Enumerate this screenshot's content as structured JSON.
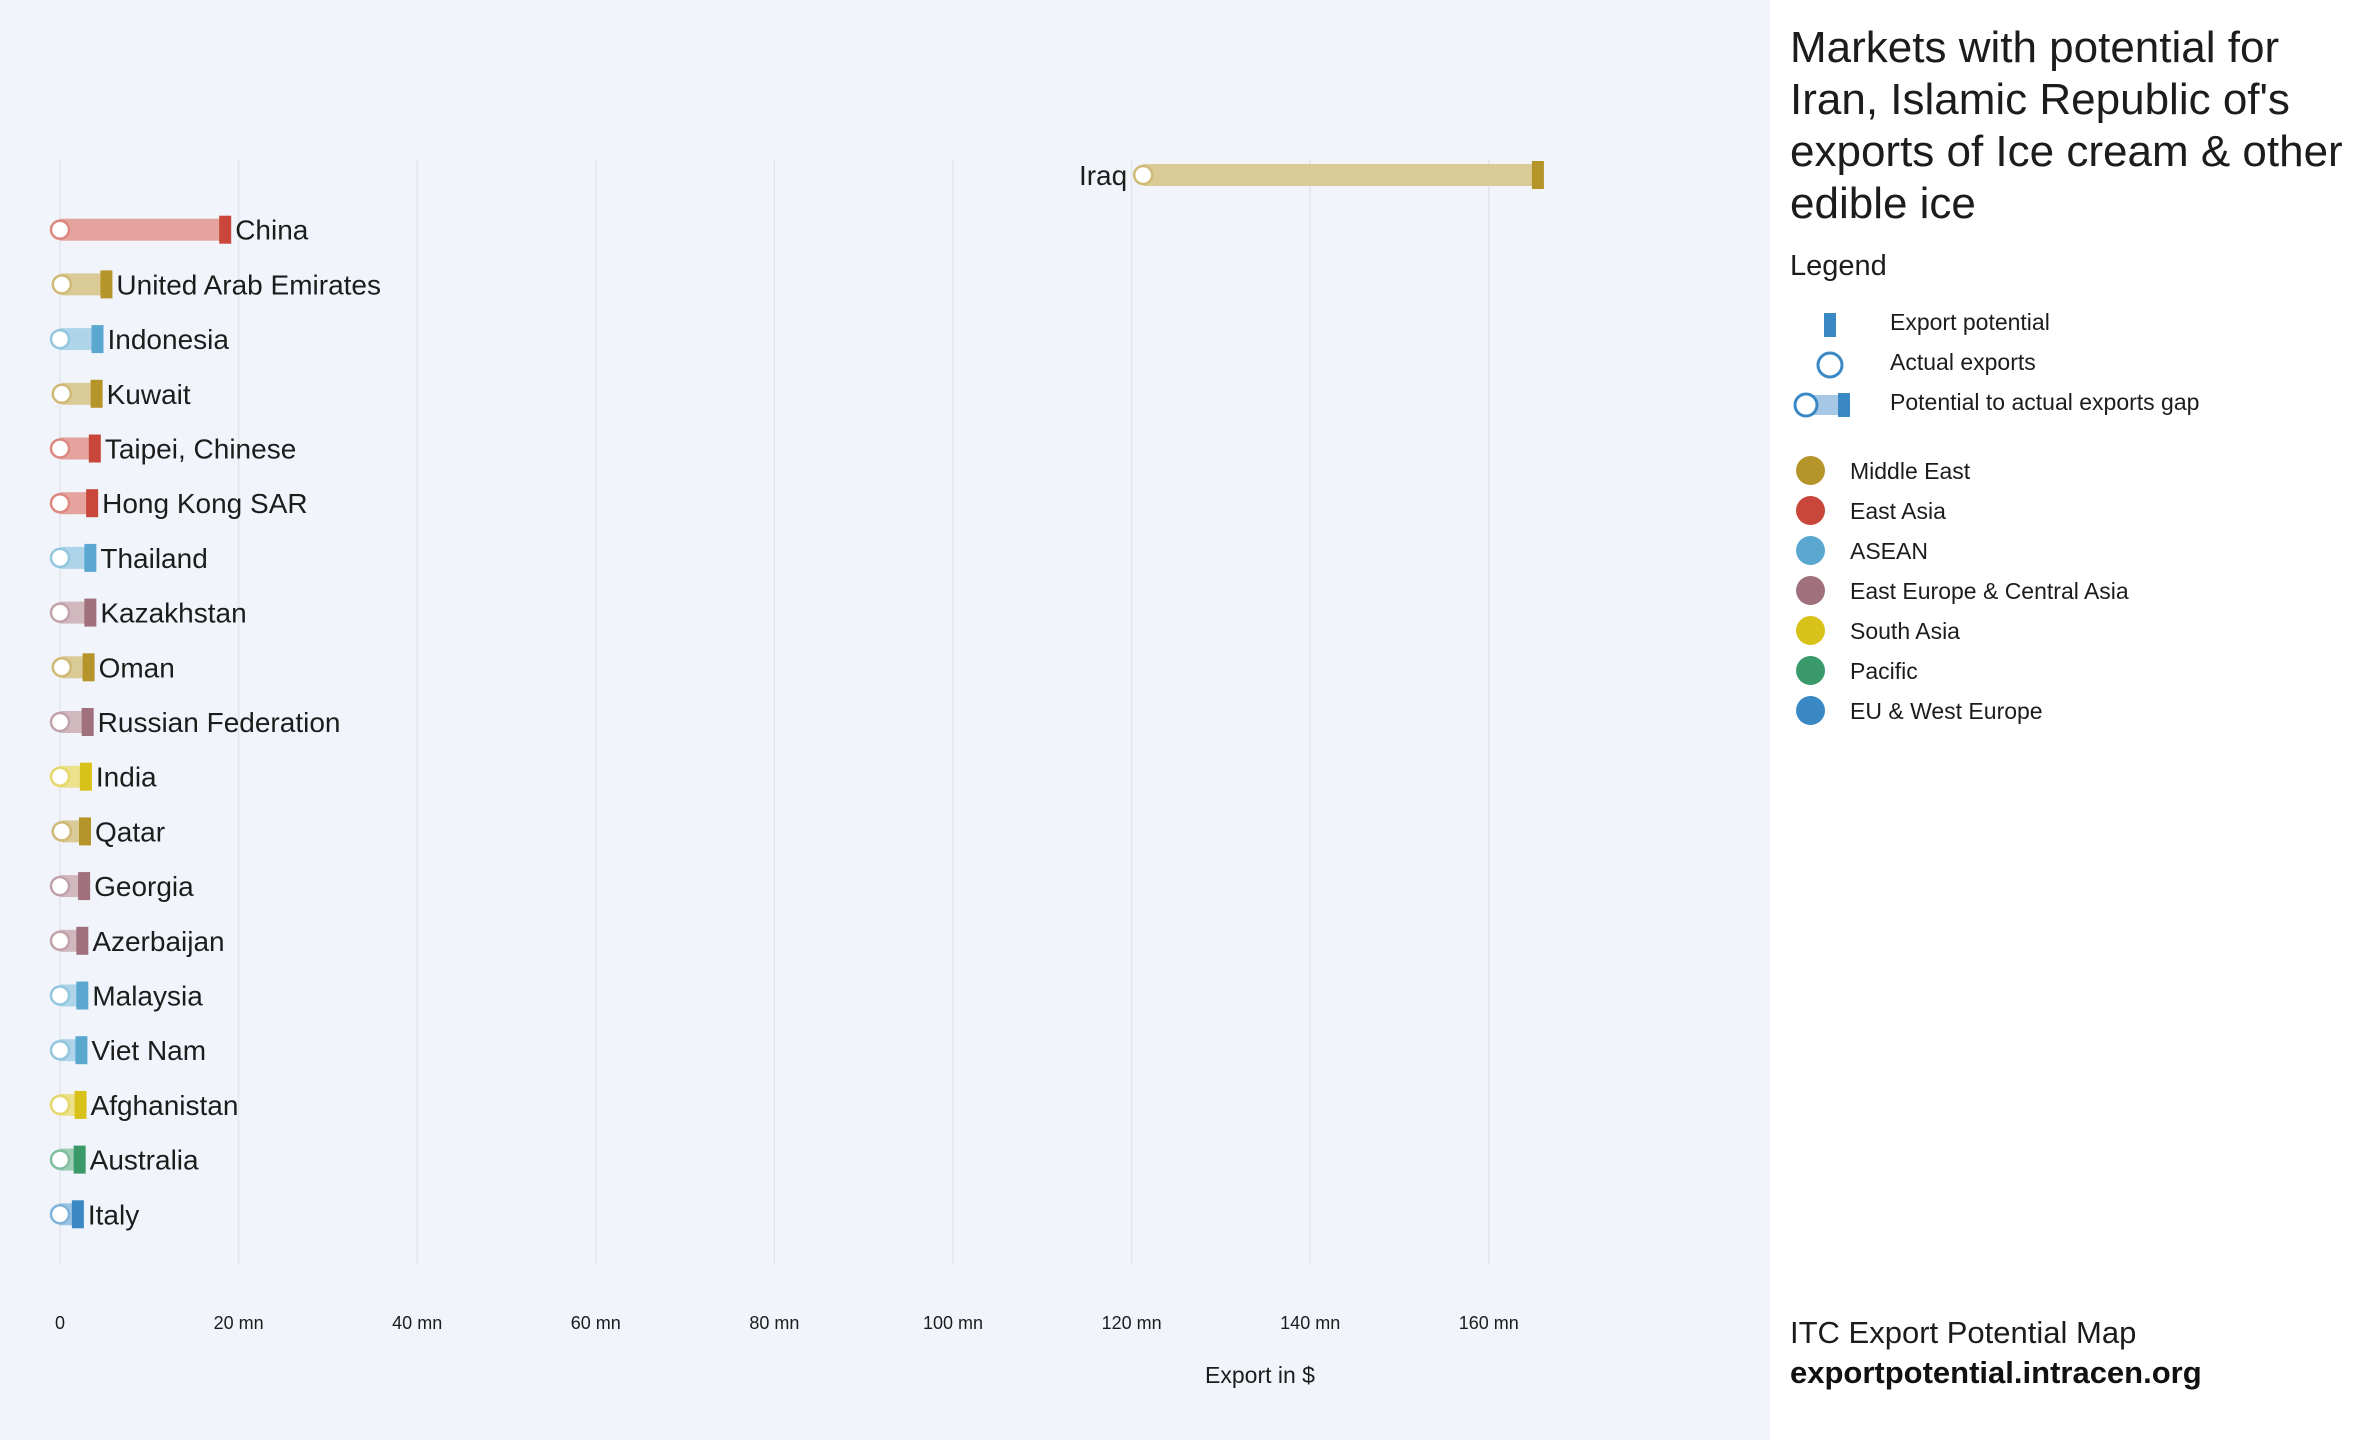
{
  "title": "Markets with potential for Iran, Islamic Republic of's exports of Ice cream & other edible ice",
  "legend": {
    "heading": "Legend",
    "items": [
      {
        "label": "Export potential",
        "icon": "potential-bar-icon"
      },
      {
        "label": "Actual exports",
        "icon": "actual-circle-icon"
      },
      {
        "label": "Potential to actual exports gap",
        "icon": "gap-icon"
      }
    ],
    "regions": [
      {
        "name": "Middle East",
        "color": "#b5942a"
      },
      {
        "name": "East Asia",
        "color": "#c9473a"
      },
      {
        "name": "ASEAN",
        "color": "#5aa8d0"
      },
      {
        "name": "East Europe & Central Asia",
        "color": "#a0707c"
      },
      {
        "name": "South Asia",
        "color": "#d8c21a"
      },
      {
        "name": "Pacific",
        "color": "#3a9a6a"
      },
      {
        "name": "EU & West Europe",
        "color": "#3a88c4"
      }
    ]
  },
  "footer": {
    "brand": "ITC Export Potential Map",
    "url": "exportpotential.intracen.org"
  },
  "chart_data": {
    "type": "bar",
    "xlabel": "Export in $",
    "xlim": [
      0,
      175
    ],
    "xticks": [
      0,
      20,
      40,
      60,
      80,
      100,
      120,
      140,
      160
    ],
    "xtick_labels": [
      "0",
      "20 mn",
      "40 mn",
      "60 mn",
      "80 mn",
      "100 mn",
      "120 mn",
      "140 mn",
      "160 mn"
    ],
    "grid": true,
    "markets": [
      {
        "name": "Iraq",
        "region": "Middle East",
        "actual": 121.3,
        "potential": 165.5
      },
      {
        "name": "China",
        "region": "East Asia",
        "actual": 0.0,
        "potential": 18.5
      },
      {
        "name": "United Arab Emirates",
        "region": "Middle East",
        "actual": 0.2,
        "potential": 5.2
      },
      {
        "name": "Indonesia",
        "region": "ASEAN",
        "actual": 0.0,
        "potential": 4.2
      },
      {
        "name": "Kuwait",
        "region": "Middle East",
        "actual": 0.2,
        "potential": 4.1
      },
      {
        "name": "Taipei, Chinese",
        "region": "East Asia",
        "actual": 0.0,
        "potential": 3.9
      },
      {
        "name": "Hong Kong SAR",
        "region": "East Asia",
        "actual": 0.0,
        "potential": 3.6
      },
      {
        "name": "Thailand",
        "region": "ASEAN",
        "actual": 0.0,
        "potential": 3.4
      },
      {
        "name": "Kazakhstan",
        "region": "East Europe & Central Asia",
        "actual": 0.0,
        "potential": 3.4
      },
      {
        "name": "Oman",
        "region": "Middle East",
        "actual": 0.2,
        "potential": 3.2
      },
      {
        "name": "Russian Federation",
        "region": "East Europe & Central Asia",
        "actual": 0.0,
        "potential": 3.1
      },
      {
        "name": "India",
        "region": "South Asia",
        "actual": 0.0,
        "potential": 2.9
      },
      {
        "name": "Qatar",
        "region": "Middle East",
        "actual": 0.2,
        "potential": 2.8
      },
      {
        "name": "Georgia",
        "region": "East Europe & Central Asia",
        "actual": 0.0,
        "potential": 2.7
      },
      {
        "name": "Azerbaijan",
        "region": "East Europe & Central Asia",
        "actual": 0.0,
        "potential": 2.5
      },
      {
        "name": "Malaysia",
        "region": "ASEAN",
        "actual": 0.0,
        "potential": 2.5
      },
      {
        "name": "Viet Nam",
        "region": "ASEAN",
        "actual": 0.0,
        "potential": 2.4
      },
      {
        "name": "Afghanistan",
        "region": "South Asia",
        "actual": 0.0,
        "potential": 2.3
      },
      {
        "name": "Australia",
        "region": "Pacific",
        "actual": 0.0,
        "potential": 2.2
      },
      {
        "name": "Italy",
        "region": "EU & West Europe",
        "actual": 0.0,
        "potential": 2.0
      }
    ]
  }
}
